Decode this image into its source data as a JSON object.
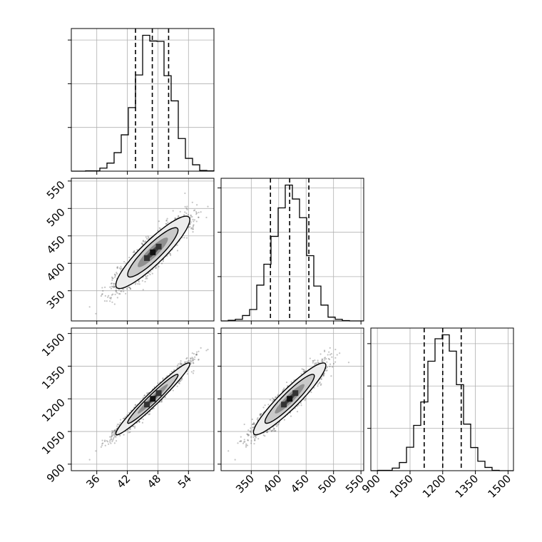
{
  "chart_data": {
    "type": "corner",
    "params": [
      {
        "mean": 47,
        "std": 3.3,
        "range": [
          31,
          59
        ],
        "quantiles": [
          43.6,
          46.9,
          50.1
        ],
        "ticks": [
          36,
          42,
          48,
          54
        ],
        "tick_labels": [
          "36",
          "42",
          "48",
          "54"
        ]
      },
      {
        "mean": 420,
        "std": 30,
        "range": [
          295,
          555
        ],
        "quantiles": [
          385,
          420,
          455
        ],
        "ticks": [
          350,
          400,
          450,
          500,
          550
        ],
        "tick_labels": [
          "350",
          "400",
          "450",
          "500",
          "550"
        ]
      },
      {
        "mean": 1200,
        "std": 75,
        "range": [
          870,
          1525
        ],
        "quantiles": [
          1115,
          1200,
          1285
        ],
        "ticks": [
          900,
          1050,
          1200,
          1350,
          1500
        ],
        "tick_labels": [
          "900",
          "1050",
          "1200",
          "1350",
          "1500"
        ]
      }
    ],
    "correlations": {
      "0-1": 0.9,
      "0-2": 0.97,
      "1-2": 0.93
    },
    "histogram_bins": 20,
    "quantile_levels": [
      0.16,
      0.5,
      0.84
    ],
    "grid": true,
    "show_points": true,
    "show_contours": true,
    "colors": {
      "line": "#000000",
      "grid": "#b0b0b0",
      "points": "#555555"
    }
  }
}
